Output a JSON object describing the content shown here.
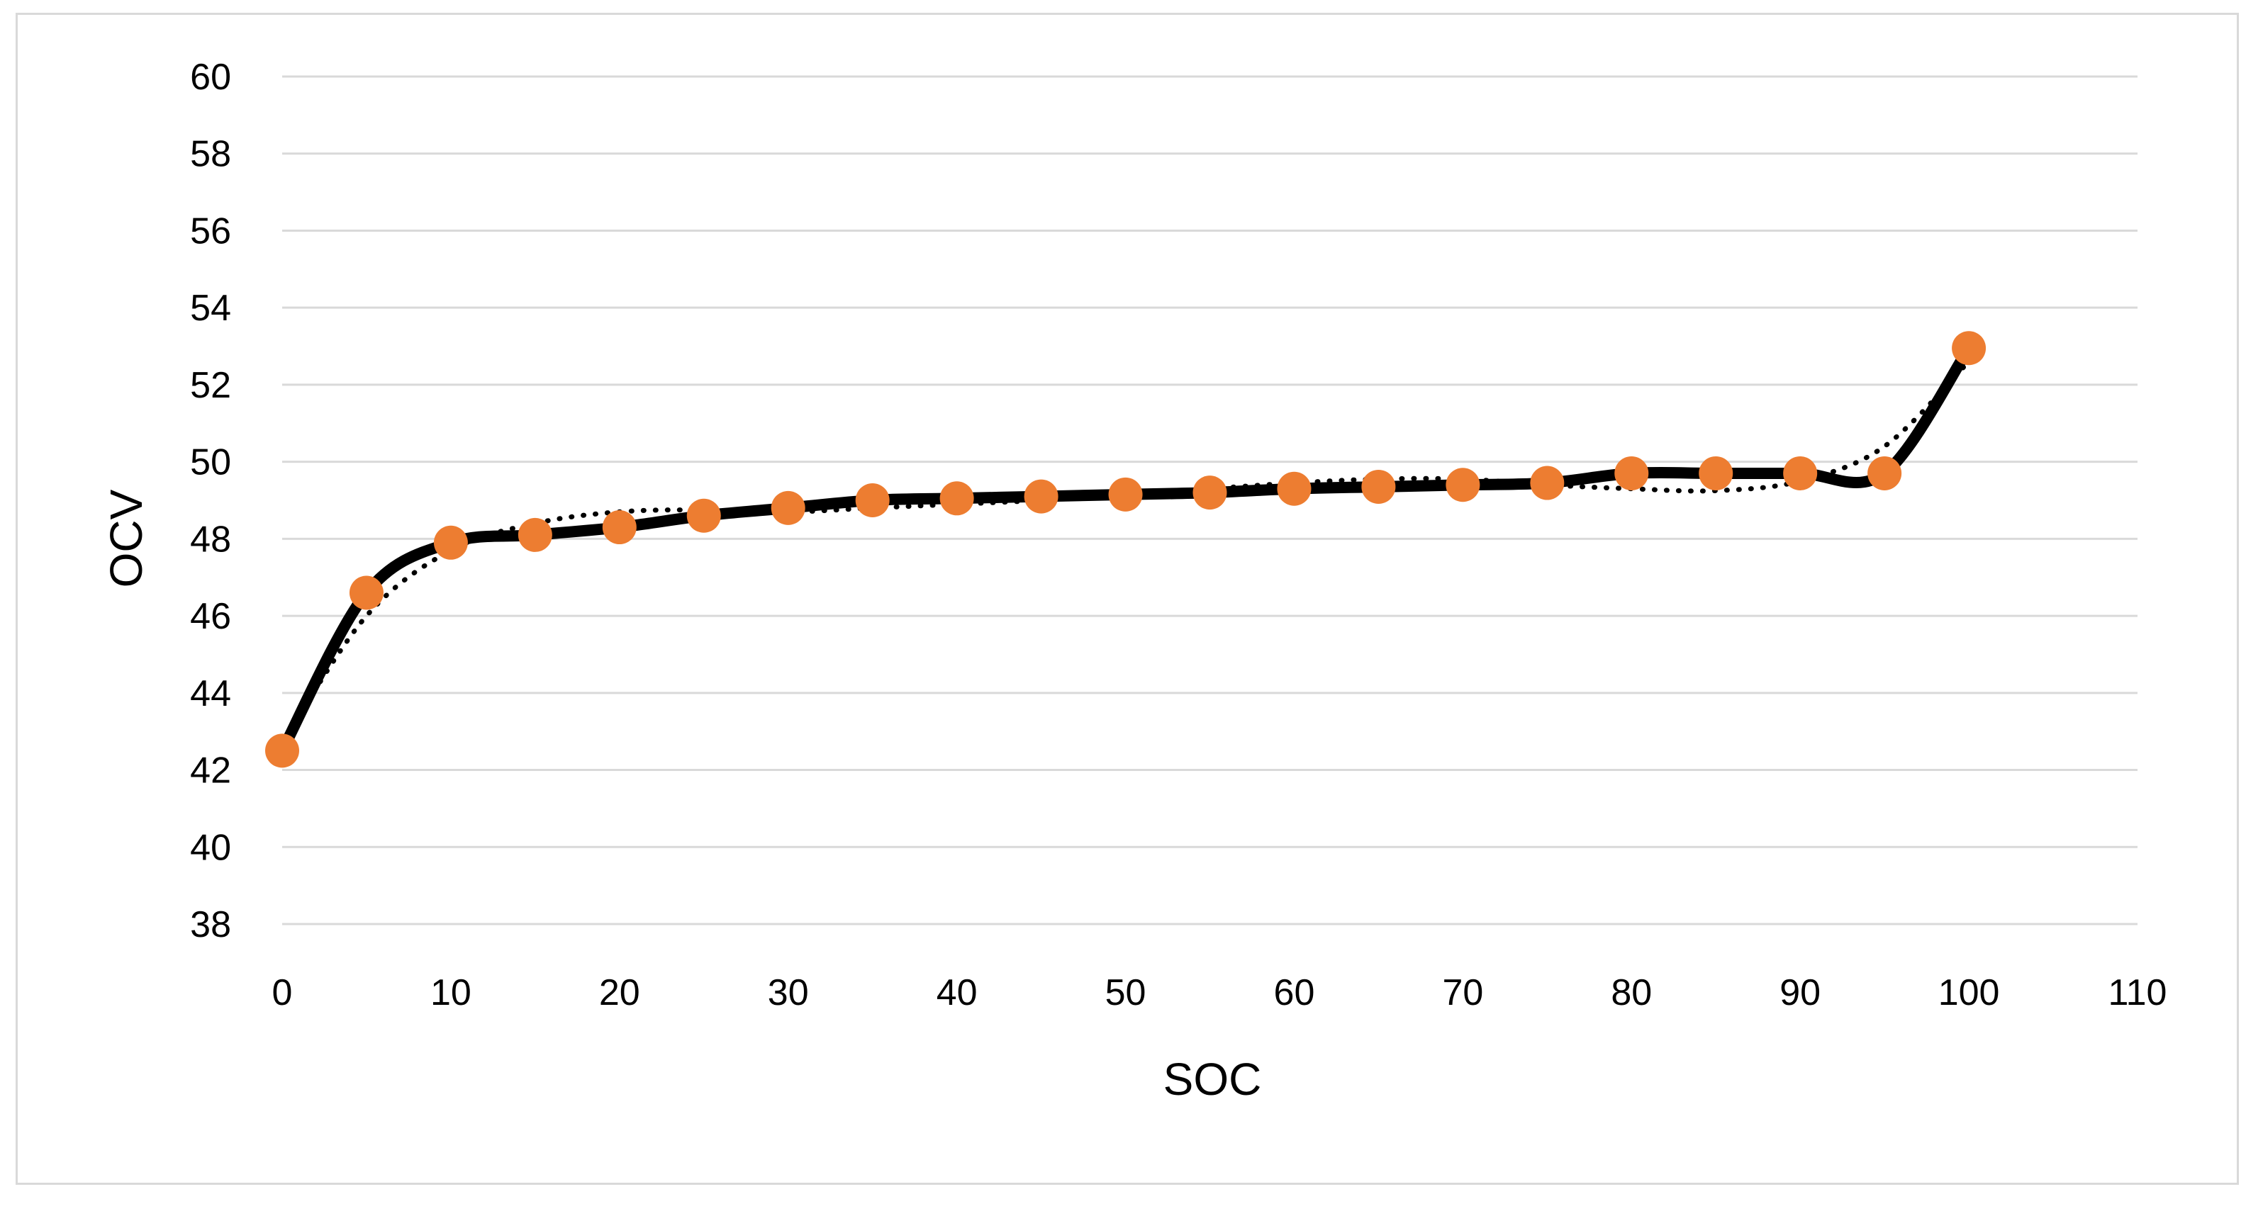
{
  "chart_data": {
    "type": "line",
    "title": "",
    "xlabel": "SOC",
    "ylabel": "OCV",
    "xlim": [
      0,
      110
    ],
    "ylim": [
      38,
      60
    ],
    "x_ticks": [
      0,
      10,
      20,
      30,
      40,
      50,
      60,
      70,
      80,
      90,
      100,
      110
    ],
    "y_ticks": [
      38,
      40,
      42,
      44,
      46,
      48,
      50,
      52,
      54,
      56,
      58,
      60
    ],
    "grid": true,
    "legend": "none",
    "series": [
      {
        "type": "scatter-smooth-line",
        "x": [
          0,
          5,
          10,
          15,
          20,
          25,
          30,
          35,
          40,
          45,
          50,
          55,
          60,
          65,
          70,
          75,
          80,
          85,
          90,
          95,
          100
        ],
        "y": [
          42.5,
          46.6,
          47.9,
          48.1,
          48.3,
          48.6,
          48.8,
          49.0,
          49.05,
          49.1,
          49.15,
          49.2,
          49.3,
          49.35,
          49.4,
          49.45,
          49.7,
          49.7,
          49.7,
          49.7,
          52.95
        ],
        "marker_color": "#ed7d31",
        "line_color": "#000000"
      },
      {
        "type": "trendline",
        "style": "dotted",
        "x": [
          0,
          5,
          10,
          15,
          20,
          25,
          30,
          35,
          40,
          45,
          50,
          55,
          60,
          65,
          70,
          75,
          80,
          85,
          90,
          95,
          100
        ],
        "y": [
          42.7,
          46.0,
          47.7,
          48.4,
          48.7,
          48.75,
          48.7,
          48.8,
          48.9,
          49.0,
          49.15,
          49.3,
          49.45,
          49.55,
          49.55,
          49.4,
          49.3,
          49.25,
          49.5,
          50.4,
          52.6
        ],
        "line_color": "#000000"
      }
    ]
  }
}
